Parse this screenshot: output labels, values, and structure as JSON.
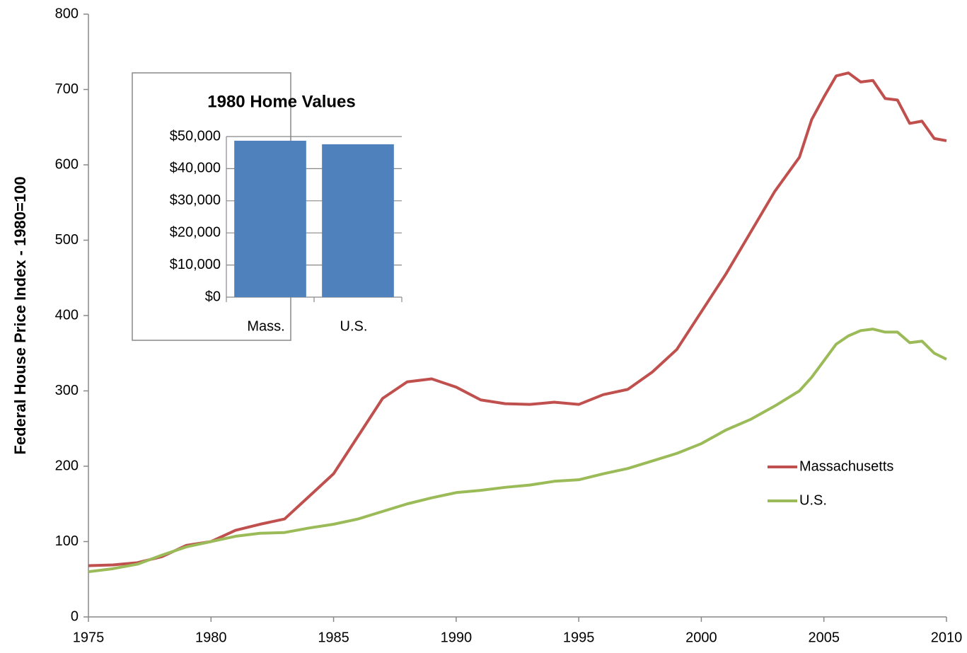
{
  "chart_data": [
    {
      "type": "line",
      "y_label": "Federal House Price Index - 1980=100",
      "x": [
        1975,
        1976,
        1977,
        1978,
        1979,
        1980,
        1981,
        1982,
        1983,
        1984,
        1985,
        1986,
        1987,
        1988,
        1989,
        1990,
        1991,
        1992,
        1993,
        1994,
        1995,
        1996,
        1997,
        1998,
        1999,
        2000,
        2001,
        2002,
        2003,
        2004,
        2004.5,
        2005,
        2005.5,
        2006,
        2006.5,
        2007,
        2007.5,
        2008,
        2008.5,
        2009,
        2009.5,
        2010
      ],
      "series": [
        {
          "name": "Massachusetts",
          "color": "#c0504d",
          "values": [
            68,
            69,
            72,
            80,
            95,
            100,
            115,
            123,
            130,
            160,
            190,
            240,
            290,
            312,
            316,
            305,
            288,
            283,
            282,
            285,
            282,
            295,
            302,
            325,
            355,
            405,
            455,
            510,
            565,
            610,
            660,
            690,
            718,
            722,
            710,
            712,
            688,
            686,
            655,
            658,
            635,
            632
          ]
        },
        {
          "name": "U.S.",
          "color": "#9bbb59",
          "values": [
            60,
            64,
            70,
            82,
            93,
            100,
            107,
            111,
            112,
            118,
            123,
            130,
            140,
            150,
            158,
            165,
            168,
            172,
            175,
            180,
            182,
            190,
            197,
            207,
            217,
            230,
            248,
            262,
            280,
            300,
            318,
            340,
            362,
            373,
            380,
            382,
            378,
            378,
            364,
            366,
            350,
            342
          ]
        }
      ],
      "xlim": [
        1975,
        2010
      ],
      "xticks": [
        1975,
        1980,
        1985,
        1990,
        1995,
        2000,
        2005,
        2010
      ],
      "ylim": [
        0,
        800
      ],
      "yticks": [
        0,
        100,
        200,
        300,
        400,
        500,
        600,
        700,
        800
      ],
      "grid": false,
      "legend": "right"
    },
    {
      "type": "bar",
      "title": "1980 Home Values",
      "categories": [
        "Mass.",
        "U.S."
      ],
      "values": [
        48700,
        47600
      ],
      "color": "#4f81bd",
      "ylim": [
        0,
        50000
      ],
      "yticks": [
        {
          "value": 0,
          "label": "$0"
        },
        {
          "value": 10000,
          "label": "$10,000"
        },
        {
          "value": 20000,
          "label": "$20,000"
        },
        {
          "value": 30000,
          "label": "$30,000"
        },
        {
          "value": 40000,
          "label": "$40,000"
        },
        {
          "value": 50000,
          "label": "$50,000"
        }
      ],
      "grid": true
    }
  ]
}
